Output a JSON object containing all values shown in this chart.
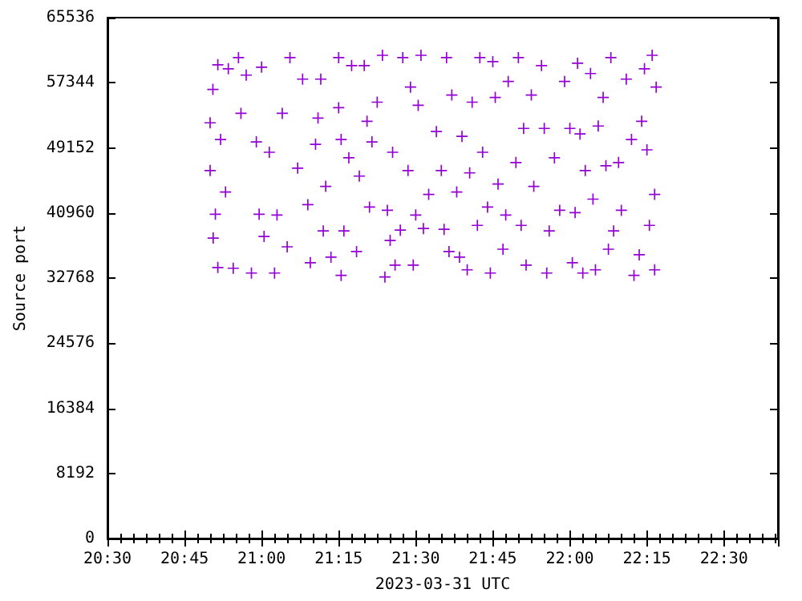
{
  "chart_data": {
    "type": "scatter",
    "xlabel": "2023-03-31 UTC",
    "ylabel": "Source port",
    "marker": "cross",
    "grid": false,
    "xlim": [
      20.5,
      22.675
    ],
    "xticks": [
      {
        "value": 20.5,
        "label": "20:30"
      },
      {
        "value": 20.75,
        "label": "20:45"
      },
      {
        "value": 21,
        "label": "21:00"
      },
      {
        "value": 21.25,
        "label": "21:15"
      },
      {
        "value": 21.5,
        "label": "21:30"
      },
      {
        "value": 21.75,
        "label": "21:45"
      },
      {
        "value": 22,
        "label": "22:00"
      },
      {
        "value": 22.25,
        "label": "22:15"
      },
      {
        "value": 22.5,
        "label": "22:30"
      }
    ],
    "ylim": [
      0,
      65536
    ],
    "yticks": [
      0,
      8192,
      16384,
      24576,
      32768,
      40960,
      49152,
      57344,
      65536
    ],
    "series": [
      {
        "color": "#9400d3",
        "x": [
          20.833,
          20.833,
          20.842,
          20.858,
          20.843,
          20.85,
          20.858,
          20.867,
          20.883,
          20.892,
          20.908,
          20.925,
          20.933,
          20.95,
          20.967,
          20.983,
          20.992,
          21.0,
          21.008,
          21.025,
          21.042,
          21.05,
          21.067,
          21.083,
          21.092,
          21.117,
          21.133,
          21.15,
          21.158,
          21.175,
          21.183,
          21.192,
          21.2,
          21.208,
          21.225,
          21.25,
          21.25,
          21.258,
          21.258,
          21.267,
          21.283,
          21.292,
          21.308,
          21.317,
          21.333,
          21.342,
          21.35,
          21.358,
          21.375,
          21.392,
          21.4,
          21.408,
          21.417,
          21.425,
          21.433,
          21.45,
          21.458,
          21.475,
          21.483,
          21.492,
          21.5,
          21.508,
          21.517,
          21.525,
          21.542,
          21.567,
          21.583,
          21.592,
          21.6,
          21.608,
          21.617,
          21.633,
          21.642,
          21.65,
          21.667,
          21.675,
          21.683,
          21.7,
          21.708,
          21.717,
          21.733,
          21.742,
          21.75,
          21.758,
          21.767,
          21.783,
          21.792,
          21.8,
          21.825,
          21.833,
          21.842,
          21.85,
          21.858,
          21.875,
          21.883,
          21.908,
          21.917,
          21.925,
          21.933,
          21.95,
          21.967,
          21.983,
          22.0,
          22.008,
          22.017,
          22.025,
          22.033,
          22.042,
          22.05,
          22.067,
          22.075,
          22.083,
          22.092,
          22.108,
          22.117,
          22.125,
          22.133,
          22.142,
          22.158,
          22.167,
          22.183,
          22.2,
          22.208,
          22.225,
          22.233,
          22.242,
          22.25,
          22.258,
          22.267,
          22.275,
          22.275,
          22.28
        ],
        "values": [
          46300,
          52300,
          56500,
          59600,
          37800,
          40800,
          34100,
          50200,
          43600,
          59100,
          34000,
          60500,
          53500,
          58300,
          33400,
          49900,
          40800,
          59300,
          38000,
          48600,
          33400,
          40700,
          53500,
          36700,
          60500,
          46600,
          57800,
          42000,
          34700,
          49600,
          52900,
          57800,
          38700,
          44300,
          35400,
          60500,
          54200,
          33100,
          50200,
          38700,
          47900,
          59500,
          36100,
          45600,
          59500,
          52500,
          41700,
          49900,
          54900,
          60800,
          32900,
          41300,
          37500,
          48600,
          34400,
          38800,
          60500,
          46300,
          56800,
          34400,
          40700,
          54500,
          60800,
          39000,
          43300,
          51200,
          46300,
          38900,
          60500,
          36100,
          55800,
          43600,
          35400,
          50600,
          33800,
          46000,
          54900,
          39400,
          60500,
          48600,
          41700,
          33400,
          60000,
          55500,
          44600,
          36400,
          40700,
          57500,
          47300,
          60500,
          39400,
          51600,
          34400,
          55800,
          44300,
          59500,
          51600,
          33400,
          38700,
          47900,
          41300,
          57500,
          51600,
          34700,
          41000,
          59800,
          50900,
          33400,
          46300,
          58500,
          42700,
          33800,
          51900,
          55500,
          46900,
          36400,
          60500,
          38700,
          47300,
          41300,
          57800,
          50200,
          33100,
          35700,
          52500,
          59100,
          48900,
          39400,
          60800,
          43300,
          33800,
          56800
        ]
      }
    ]
  }
}
